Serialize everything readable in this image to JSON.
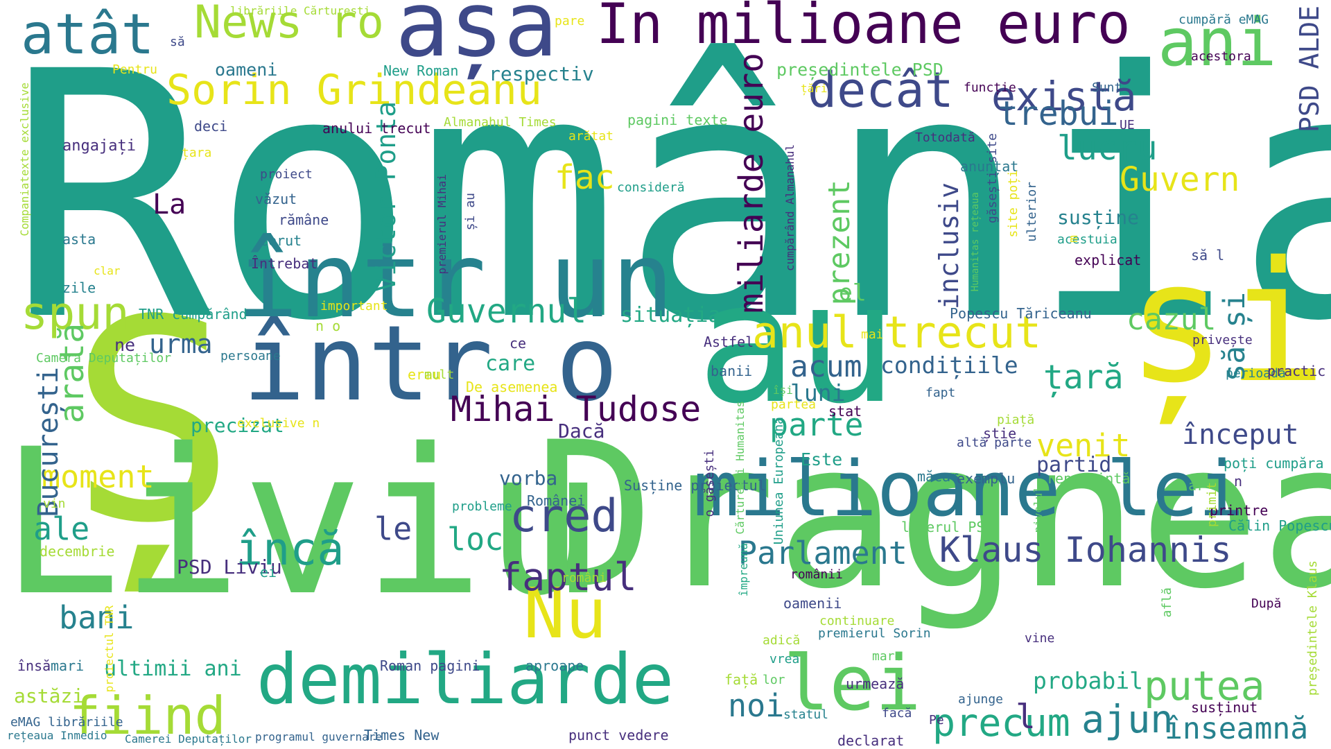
{
  "palette": {
    "yellow": "#e7e419",
    "lime": "#a5db36",
    "light_green": "#5ec962",
    "green": "#22a884",
    "teal": "#1f9e89",
    "cyan_blue": "#26828e",
    "blue_teal": "#2a788e",
    "blue": "#33638d",
    "indigo": "#3e4989",
    "dark_indigo": "#472f7d",
    "dark_purple": "#440154",
    "purple": "#482475"
  },
  "words": [
    "România",
    "Ș",
    "Liviu",
    "Dragnea",
    "au",
    "și",
    "într un",
    "într o",
    "milioane lei",
    "demiliarde",
    "lei",
    "Nu",
    "așa",
    "În milioane euro",
    "ani",
    "atât",
    "News ro",
    "Sorin Grindeanu",
    "decât",
    "există",
    "trebui",
    "lucru",
    "Guvern",
    "PSD ALDE",
    "spun",
    "anul trecut",
    "cazul",
    "țară",
    "să și",
    "acum",
    "condițiile",
    "luni",
    "Guvernul",
    "situația",
    "Mihai Tudose",
    "parte",
    "venit",
    "început",
    "partid",
    "cred",
    "loc",
    "faptul",
    "Parlament",
    "Klaus Iohannis",
    "putea",
    "înseamnă",
    "precum",
    "ajun",
    "probabil",
    "noi",
    "fiind",
    "ultimii ani",
    "bani",
    "moment",
    "arată",
    "București",
    "încă",
    "ale",
    "le",
    "fac",
    "miliarde euro",
    "Victor Ponta",
    "prezent",
    "inclusiv",
    "el",
    "susține",
    "explicat",
    "oameni",
    "respectiv",
    "președintele PSD",
    "La",
    "urma",
    "ne",
    "precizat",
    "Dacă",
    "vorba",
    "care",
    "PSD Liviu",
    "Este",
    "l",
    "cumpără eMAG",
    "acestora",
    "funcție",
    "Sunt",
    "UE",
    "Totodată",
    "anunțat",
    "acestuia",
    "site poți",
    "găsești site",
    "ulterior",
    "m",
    "Humanitas rețeaua",
    "cumpărând Almanahul",
    "premierul Mihai",
    "și au",
    "consideră",
    "arătat",
    "pagini texte",
    "Almanahul Times",
    "New Roman",
    "anului trecut",
    "deci",
    "angajați",
    "țara",
    "proiect",
    "văzut",
    "rămâne",
    "cerut",
    "Întrebat",
    "asta",
    "zile",
    "clar",
    "Pentru",
    "să",
    "librăriile Cărturești",
    "pare",
    "țări",
    "Companiatexte exclusive",
    "să l",
    "Popescu Tăriceanu",
    "TNR cumpărând",
    "important",
    "n o",
    "Camera Deputaților",
    "persoane",
    "ce",
    "mai",
    "privește",
    "perioada",
    "practic",
    "Astfel",
    "banii",
    "erau",
    "mult",
    "De asemenea",
    "fapt",
    "piață",
    "știe",
    "poți cumpăra",
    "n",
    "stat",
    "exclusive n",
    "exemplu",
    "partea",
    "își",
    "măcar",
    "Călin Popescu",
    "probleme",
    "printre",
    "decembrie",
    "ei",
    "vin",
    "susținut",
    "altă parte",
    "reprezintă",
    "Românei",
    "Susține proiectul",
    "s ar",
    "români",
    "liderul PSD",
    "o găsești",
    "Cărturești Humanitas",
    "împreună",
    "află",
    "nivelul",
    "primit",
    "Uniunea Europeană",
    "românii",
    "continuare",
    "premierul Sorin",
    "oamenii",
    "președintele Klaus",
    "Pe",
    "facă",
    "adică",
    "După",
    "vine",
    "vrea",
    "lor",
    "statul",
    "mare",
    "ajunge",
    "însă",
    "mari",
    "proiectul TNR",
    "Roman pagini",
    "aproape",
    "față",
    "urmează",
    "astăzi",
    "eMAG librăriile",
    "rețeaua Inmedio",
    "Camerei Deputaților",
    "programul guvernare",
    "Times New",
    "punct vedere",
    "declarat"
  ]
}
